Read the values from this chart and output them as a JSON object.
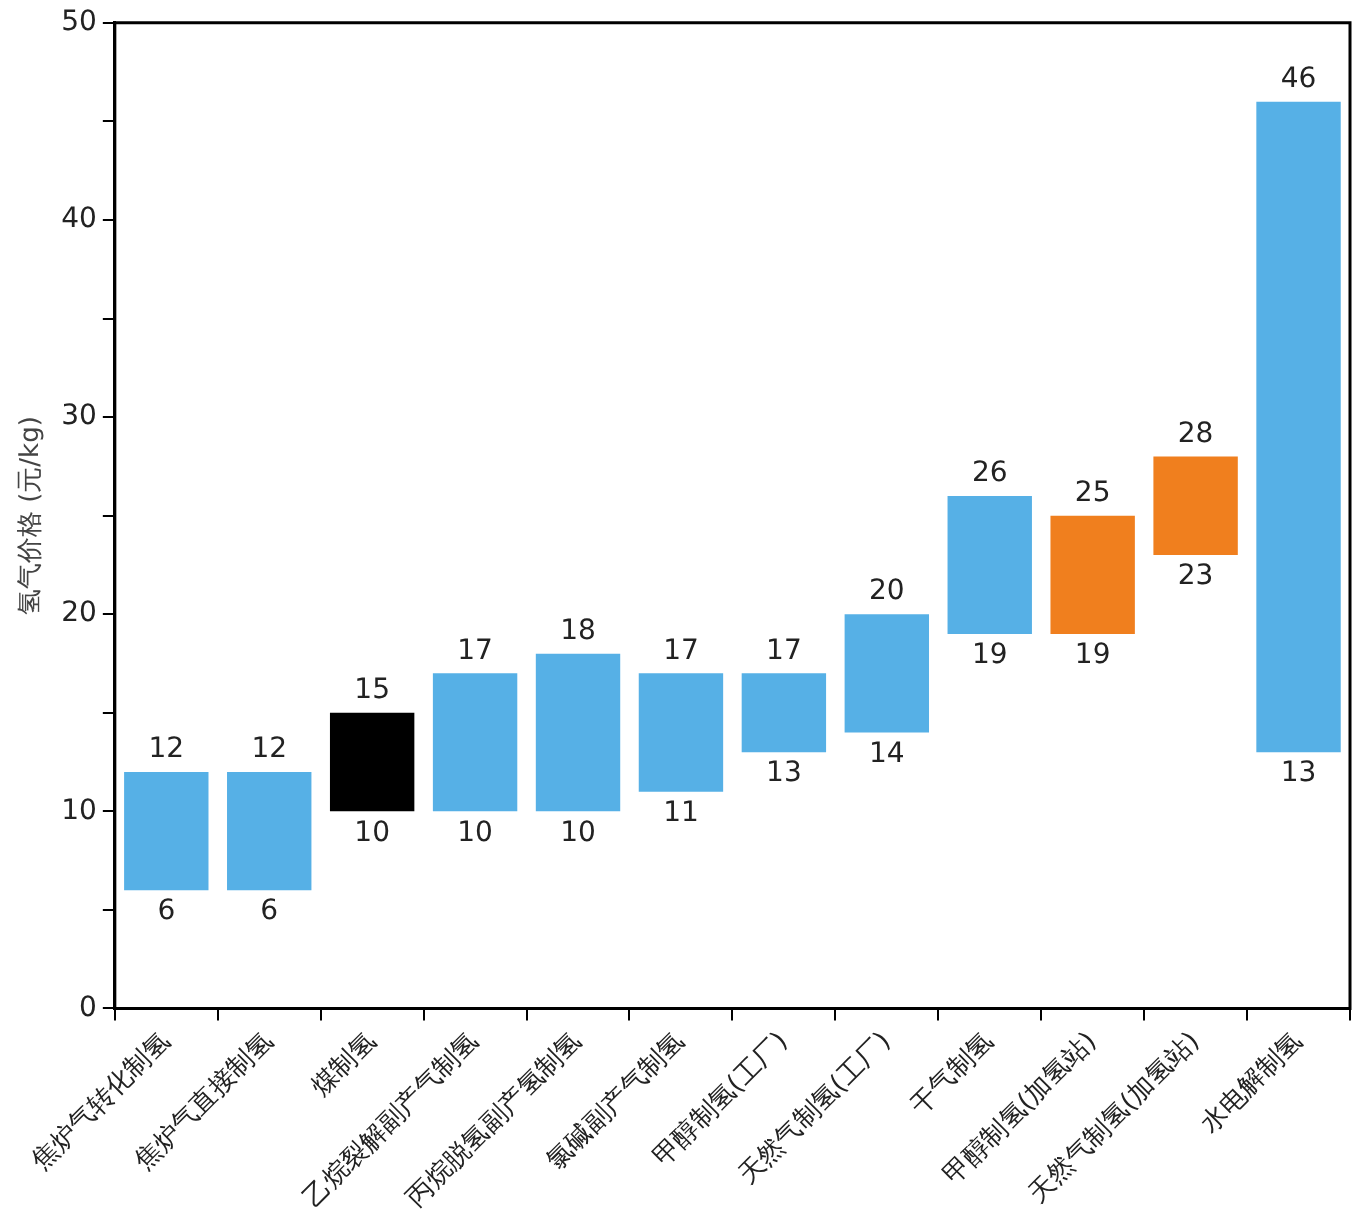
{
  "chart_data": {
    "type": "bar",
    "ylabel": "氢气价格 (元/kg)",
    "categories": [
      "焦炉气转化制氢",
      "焦炉气直接制氢",
      "煤制氢",
      "乙烷裂解副产气制氢",
      "丙烷脱氢副产氢制氢",
      "氯碱副产气制氢",
      "甲醇制氢(工厂)",
      "天然气制氢(工厂)",
      "干气制氢",
      "甲醇制氢(加氢站)",
      "天然气制氢(加氢站)",
      "水电解制氢"
    ],
    "base": [
      6,
      6,
      10,
      10,
      10,
      11,
      13,
      14,
      19,
      19,
      23,
      13
    ],
    "values": [
      6,
      6,
      5,
      7,
      8,
      6,
      4,
      6,
      7,
      6,
      5,
      33
    ],
    "colors": [
      "#56b0e6",
      "#56b0e6",
      "#000000",
      "#56b0e6",
      "#56b0e6",
      "#56b0e6",
      "#56b0e6",
      "#56b0e6",
      "#56b0e6",
      "#f07f1e",
      "#f07f1e",
      "#56b0e6"
    ],
    "ylim": [
      0,
      50
    ],
    "yticks": [
      0,
      {
        "value": 5,
        "label": null
      },
      10,
      {
        "value": 15,
        "label": null
      },
      20,
      {
        "value": 25,
        "label": null
      },
      30,
      {
        "value": 35,
        "label": null
      },
      40,
      {
        "value": 45,
        "label": null
      },
      50
    ],
    "grid": false,
    "legend": false,
    "annotations": [
      {
        "text": "12",
        "x": "焦炉气转化制氢",
        "y": 12
      },
      {
        "text": "6",
        "x": "焦炉气转化制氢",
        "y": 6
      },
      {
        "text": "12",
        "x": "焦炉气直接制氢",
        "y": 12
      },
      {
        "text": "6",
        "x": "焦炉气直接制氢",
        "y": 6
      },
      {
        "text": "15",
        "x": "煤制氢",
        "y": 15
      },
      {
        "text": "10",
        "x": "煤制氢",
        "y": 10
      },
      {
        "text": "17",
        "x": "乙烷裂解副产气制氢",
        "y": 17
      },
      {
        "text": "10",
        "x": "乙烷裂解副产气制氢",
        "y": 10
      },
      {
        "text": "18",
        "x": "丙烷脱氢副产氢制氢",
        "y": 18
      },
      {
        "text": "10",
        "x": "丙烷脱氢副产氢制氢",
        "y": 10
      },
      {
        "text": "17",
        "x": "氯碱副产气制氢",
        "y": 17
      },
      {
        "text": "11",
        "x": "氯碱副产气制氢",
        "y": 11
      },
      {
        "text": "17",
        "x": "甲醇制氢(工厂)",
        "y": 17
      },
      {
        "text": "13",
        "x": "甲醇制氢(工厂)",
        "y": 13
      },
      {
        "text": "20",
        "x": "天然气制氢(工厂)",
        "y": 20
      },
      {
        "text": "14",
        "x": "天然气制氢(工厂)",
        "y": 14
      },
      {
        "text": "26",
        "x": "干气制氢",
        "y": 26
      },
      {
        "text": "19",
        "x": "干气制氢",
        "y": 19
      },
      {
        "text": "25",
        "x": "甲醇制氢(加氢站)",
        "y": 25
      },
      {
        "text": "19",
        "x": "甲醇制氢(加氢站)",
        "y": 19
      },
      {
        "text": "28",
        "x": "天然气制氢(加氢站)",
        "y": 28
      },
      {
        "text": "23",
        "x": "天然气制氢(加氢站)",
        "y": 23
      },
      {
        "text": "46",
        "x": "水电解制氢",
        "y": 46
      },
      {
        "text": "13",
        "x": "水电解制氢",
        "y": 13
      }
    ]
  }
}
